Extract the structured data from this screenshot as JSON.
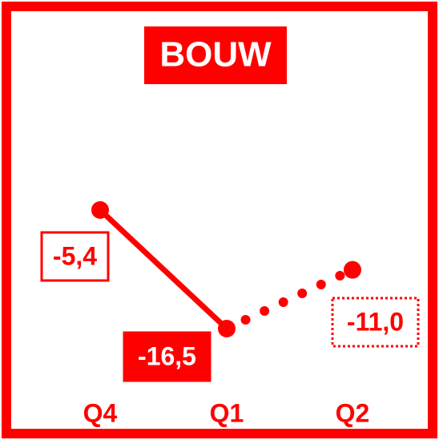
{
  "chart_data": {
    "type": "line",
    "title": "BOUW",
    "categories": [
      "Q4",
      "Q1",
      "Q2"
    ],
    "values": [
      -5.4,
      -16.5,
      -11.0
    ],
    "value_labels": [
      "-5,4",
      "-16,5",
      "-11,0"
    ],
    "color": "#ff0000"
  }
}
